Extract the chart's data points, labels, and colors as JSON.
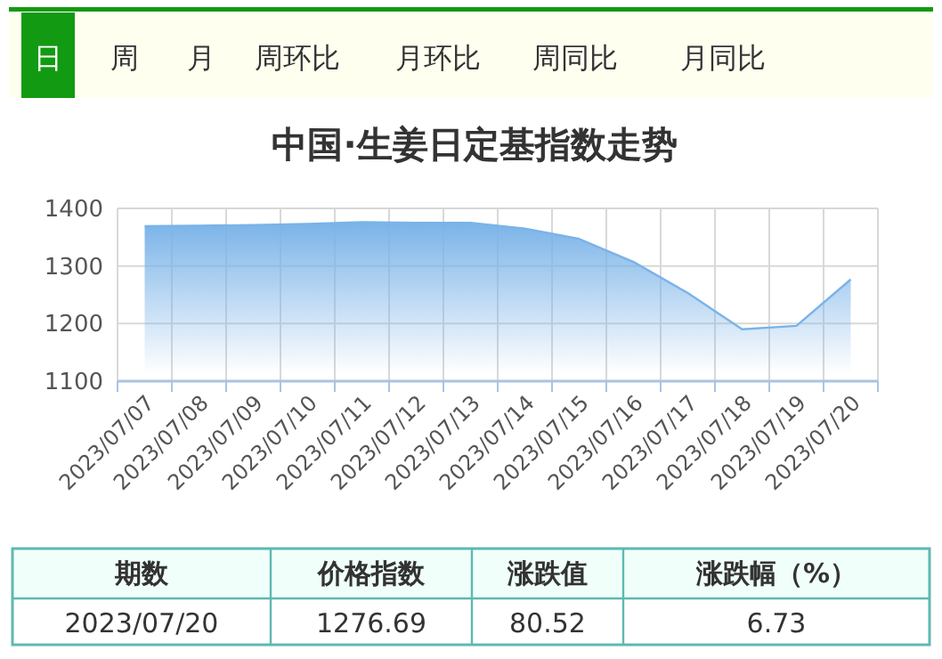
{
  "chart_data": {
    "type": "area",
    "title": "中国·生姜日定基指数走势",
    "categories": [
      "2023/07/07",
      "2023/07/08",
      "2023/07/09",
      "2023/07/10",
      "2023/07/11",
      "2023/07/12",
      "2023/07/13",
      "2023/07/14",
      "2023/07/15",
      "2023/07/16",
      "2023/07/17",
      "2023/07/18",
      "2023/07/19",
      "2023/07/20"
    ],
    "series": [
      {
        "color": "#7ab3e8",
        "values": [
          1369,
          1370,
          1371,
          1373,
          1376,
          1375,
          1375,
          1365,
          1347,
          1307,
          1253,
          1190,
          1196,
          1276.69
        ]
      }
    ],
    "ylim": [
      1100,
      1400
    ],
    "yticks": [
      1100,
      1200,
      1300,
      1400
    ],
    "grid": true,
    "annotations": [
      "日",
      "周",
      "月",
      "周环比",
      "月环比",
      "周同比",
      "月同比",
      "期数",
      "价格指数",
      "涨跌值",
      "涨跌幅（%）",
      "2023/07/20",
      "1276.69",
      "80.52",
      "6.73"
    ]
  }
}
